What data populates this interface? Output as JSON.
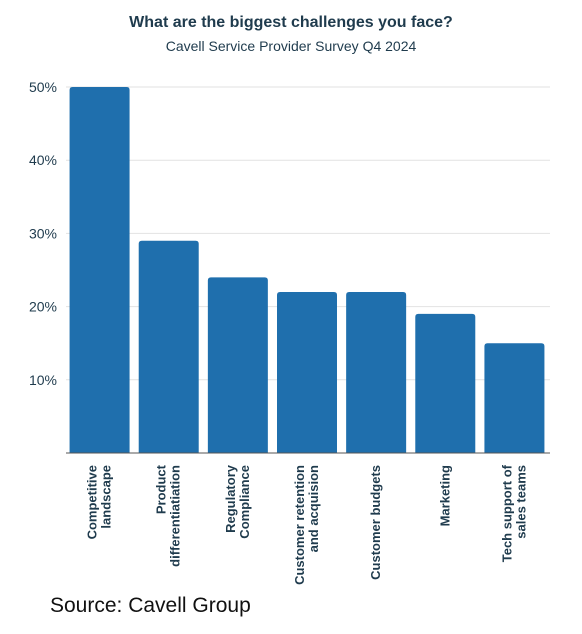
{
  "chart_data": {
    "type": "bar",
    "title": "What are the biggest challenges you face?",
    "subtitle": "Cavell Service Provider Survey Q4 2024",
    "categories": [
      [
        "Competitive",
        "landscape"
      ],
      [
        "Product",
        "differentiatiation"
      ],
      [
        "Regulatory",
        "Compliance"
      ],
      [
        "Customer retention",
        "and acquision"
      ],
      [
        "Customer budgets"
      ],
      [
        "Marketing"
      ],
      [
        "Tech support of",
        "sales teams"
      ]
    ],
    "values": [
      50,
      29,
      24,
      22,
      22,
      19,
      15
    ],
    "yticks": [
      "10%",
      "20%",
      "30%",
      "40%",
      "50%"
    ],
    "ytick_values": [
      10,
      20,
      30,
      40,
      50
    ],
    "ylim": [
      0,
      50
    ],
    "xlabel": "",
    "ylabel": "",
    "grid": true,
    "bar_color": "#1f6fad",
    "grid_color": "#e2e2e2",
    "axis_color": "#555555"
  },
  "source": "Source: Cavell Group"
}
